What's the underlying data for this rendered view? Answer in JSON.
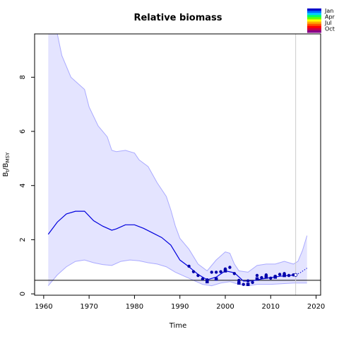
{
  "chart_data": {
    "type": "line",
    "title": "Relative biomass",
    "xlabel": "Time",
    "ylabel_main": "B",
    "ylabel_sub1": "t",
    "ylabel_mid": "/B",
    "ylabel_sub2": "MSY",
    "xlim": [
      1958,
      2021
    ],
    "ylim": [
      -0.05,
      9.6
    ],
    "x_ticks": [
      1960,
      1970,
      1980,
      1990,
      2000,
      2010,
      2020
    ],
    "y_ticks": [
      0,
      2,
      4,
      6,
      8
    ],
    "reference_line_y": 0.5,
    "vertical_line_x": 2015.5,
    "legend": {
      "placement": "top-right",
      "labels": [
        "Jan",
        "Apr",
        "Jul",
        "Oct"
      ],
      "colors": [
        "#0000cc",
        "#0066ff",
        "#00ccff",
        "#00ff66",
        "#66ff00",
        "#ffff00",
        "#ffaa00",
        "#ff5500",
        "#ff0000",
        "#cc0044",
        "#880088"
      ]
    },
    "colors": {
      "band_fill": "#e4e4ff",
      "band_stroke": "#aaaaff",
      "line": "#0000dd",
      "points": "#0000aa",
      "refline": "#000000",
      "vline": "#cccccc"
    },
    "series": [
      {
        "kind": "median",
        "x": [
          1961,
          1963,
          1965,
          1967,
          1969,
          1971,
          1973,
          1975,
          1976,
          1978,
          1980,
          1982,
          1984,
          1986,
          1988,
          1990,
          1992,
          1994,
          1996,
          1998,
          2000,
          2002,
          2004,
          2006,
          2008,
          2010,
          2012,
          2014,
          2015.5
        ],
        "y": [
          2.2,
          2.65,
          2.95,
          3.05,
          3.05,
          2.7,
          2.5,
          2.35,
          2.4,
          2.55,
          2.55,
          2.42,
          2.25,
          2.08,
          1.8,
          1.25,
          1.0,
          0.72,
          0.52,
          0.62,
          0.85,
          0.78,
          0.47,
          0.48,
          0.55,
          0.6,
          0.65,
          0.68,
          0.7
        ]
      },
      {
        "kind": "upper",
        "x": [
          1961,
          1962,
          1963,
          1964,
          1966,
          1968,
          1969,
          1970,
          1972,
          1974,
          1975,
          1976,
          1978,
          1980,
          1981,
          1983,
          1985,
          1987,
          1988,
          1989,
          1990,
          1992,
          1994,
          1996,
          1998,
          2000,
          2001,
          2002,
          2003,
          2005,
          2007,
          2009,
          2011,
          2013,
          2015,
          2016,
          2017,
          2018
        ],
        "y": [
          9.6,
          9.6,
          9.6,
          8.8,
          8.0,
          7.7,
          7.55,
          6.9,
          6.2,
          5.8,
          5.3,
          5.25,
          5.3,
          5.2,
          4.95,
          4.7,
          4.1,
          3.6,
          3.1,
          2.5,
          2.05,
          1.65,
          1.1,
          0.85,
          1.25,
          1.55,
          1.5,
          1.1,
          0.85,
          0.8,
          1.05,
          1.1,
          1.1,
          1.2,
          1.1,
          1.2,
          1.6,
          2.15
        ]
      },
      {
        "kind": "lower",
        "x": [
          1961,
          1963,
          1965,
          1967,
          1969,
          1971,
          1973,
          1975,
          1977,
          1979,
          1981,
          1983,
          1985,
          1987,
          1989,
          1991,
          1993,
          1995,
          1997,
          1999,
          2001,
          2003,
          2005,
          2007,
          2010,
          2013,
          2015,
          2018
        ],
        "y": [
          0.3,
          0.7,
          1.0,
          1.2,
          1.25,
          1.15,
          1.08,
          1.05,
          1.2,
          1.25,
          1.22,
          1.15,
          1.1,
          1.0,
          0.8,
          0.65,
          0.5,
          0.35,
          0.3,
          0.4,
          0.45,
          0.35,
          0.3,
          0.35,
          0.35,
          0.38,
          0.4,
          0.4
        ]
      },
      {
        "kind": "projection",
        "x": [
          2015.5,
          2016.5,
          2018
        ],
        "y": [
          0.7,
          0.78,
          0.95
        ]
      },
      {
        "kind": "observed_points",
        "x": [
          1992,
          1993,
          1994,
          1995,
          1996,
          1997,
          1998,
          1999,
          2000,
          2001,
          2002,
          2003,
          2004,
          2005,
          2006,
          2007,
          2008,
          2009,
          2010,
          2011,
          2012,
          2013,
          2014,
          2015
        ],
        "y": [
          1.02,
          0.82,
          0.68,
          0.55,
          0.52,
          0.8,
          0.8,
          0.82,
          0.92,
          0.98,
          0.75,
          0.5,
          0.35,
          0.48,
          0.42,
          0.68,
          0.6,
          0.7,
          0.58,
          0.65,
          0.72,
          0.75,
          0.68,
          0.7
        ]
      },
      {
        "kind": "observed_points_2",
        "x": [
          1996,
          1998,
          2000,
          2003,
          2005,
          2007,
          2009,
          2011,
          2013
        ],
        "y": [
          0.45,
          0.55,
          0.85,
          0.4,
          0.35,
          0.55,
          0.62,
          0.62,
          0.68
        ]
      }
    ]
  }
}
